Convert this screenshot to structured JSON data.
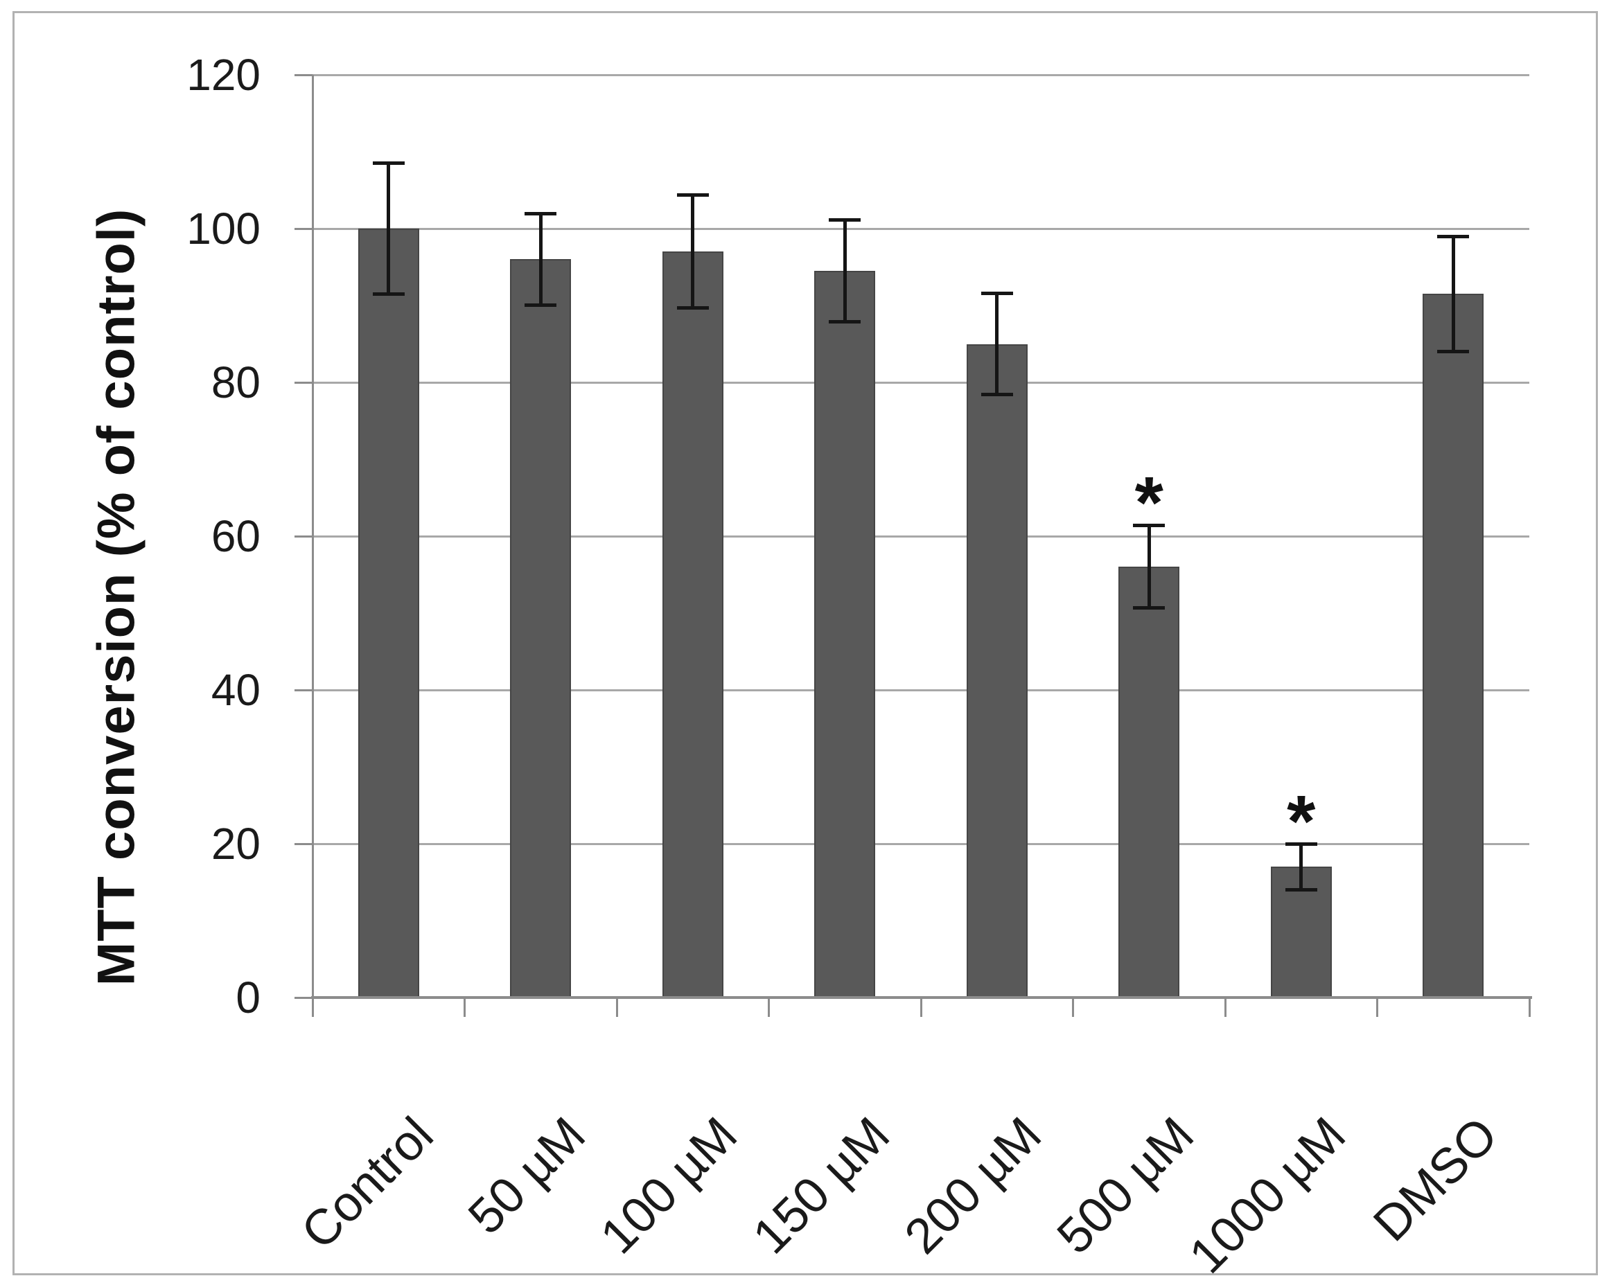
{
  "figure": {
    "kind": "scientific bar chart with error bars",
    "significance_note": "asterisks mark statistically significant bars"
  },
  "chart_data": {
    "type": "bar",
    "title": "",
    "xlabel": "",
    "ylabel": "MTT conversion (% of control)",
    "ylim": [
      0,
      120
    ],
    "yticks": [
      0,
      20,
      40,
      60,
      80,
      100,
      120
    ],
    "grid": true,
    "legend": false,
    "categories": [
      "Control",
      "50 µM",
      "100 µM",
      "150 µM",
      "200 µM",
      "500 µM",
      "1000 µM",
      "DMSO"
    ],
    "series": [
      {
        "name": "MTT conversion (% of control)",
        "values": [
          100,
          96,
          97,
          94.5,
          85,
          56,
          17,
          91.5
        ],
        "errors": [
          8.6,
          6.0,
          7.4,
          6.7,
          6.6,
          5.4,
          3.0,
          7.5
        ],
        "significant": [
          false,
          false,
          false,
          false,
          false,
          true,
          true,
          false
        ]
      }
    ],
    "significance_marker": "*"
  },
  "style": {
    "bar_fill": "#595959",
    "bar_border": "#454545",
    "gridline_color": "#a8a8a8",
    "axis_color": "#8c8c8c",
    "tick_color": "#8c8c8c",
    "error_bar_color": "#151515",
    "text_color": "#1a1a1a",
    "frame_border_color": "#b2b2b2",
    "background": "#ffffff"
  }
}
